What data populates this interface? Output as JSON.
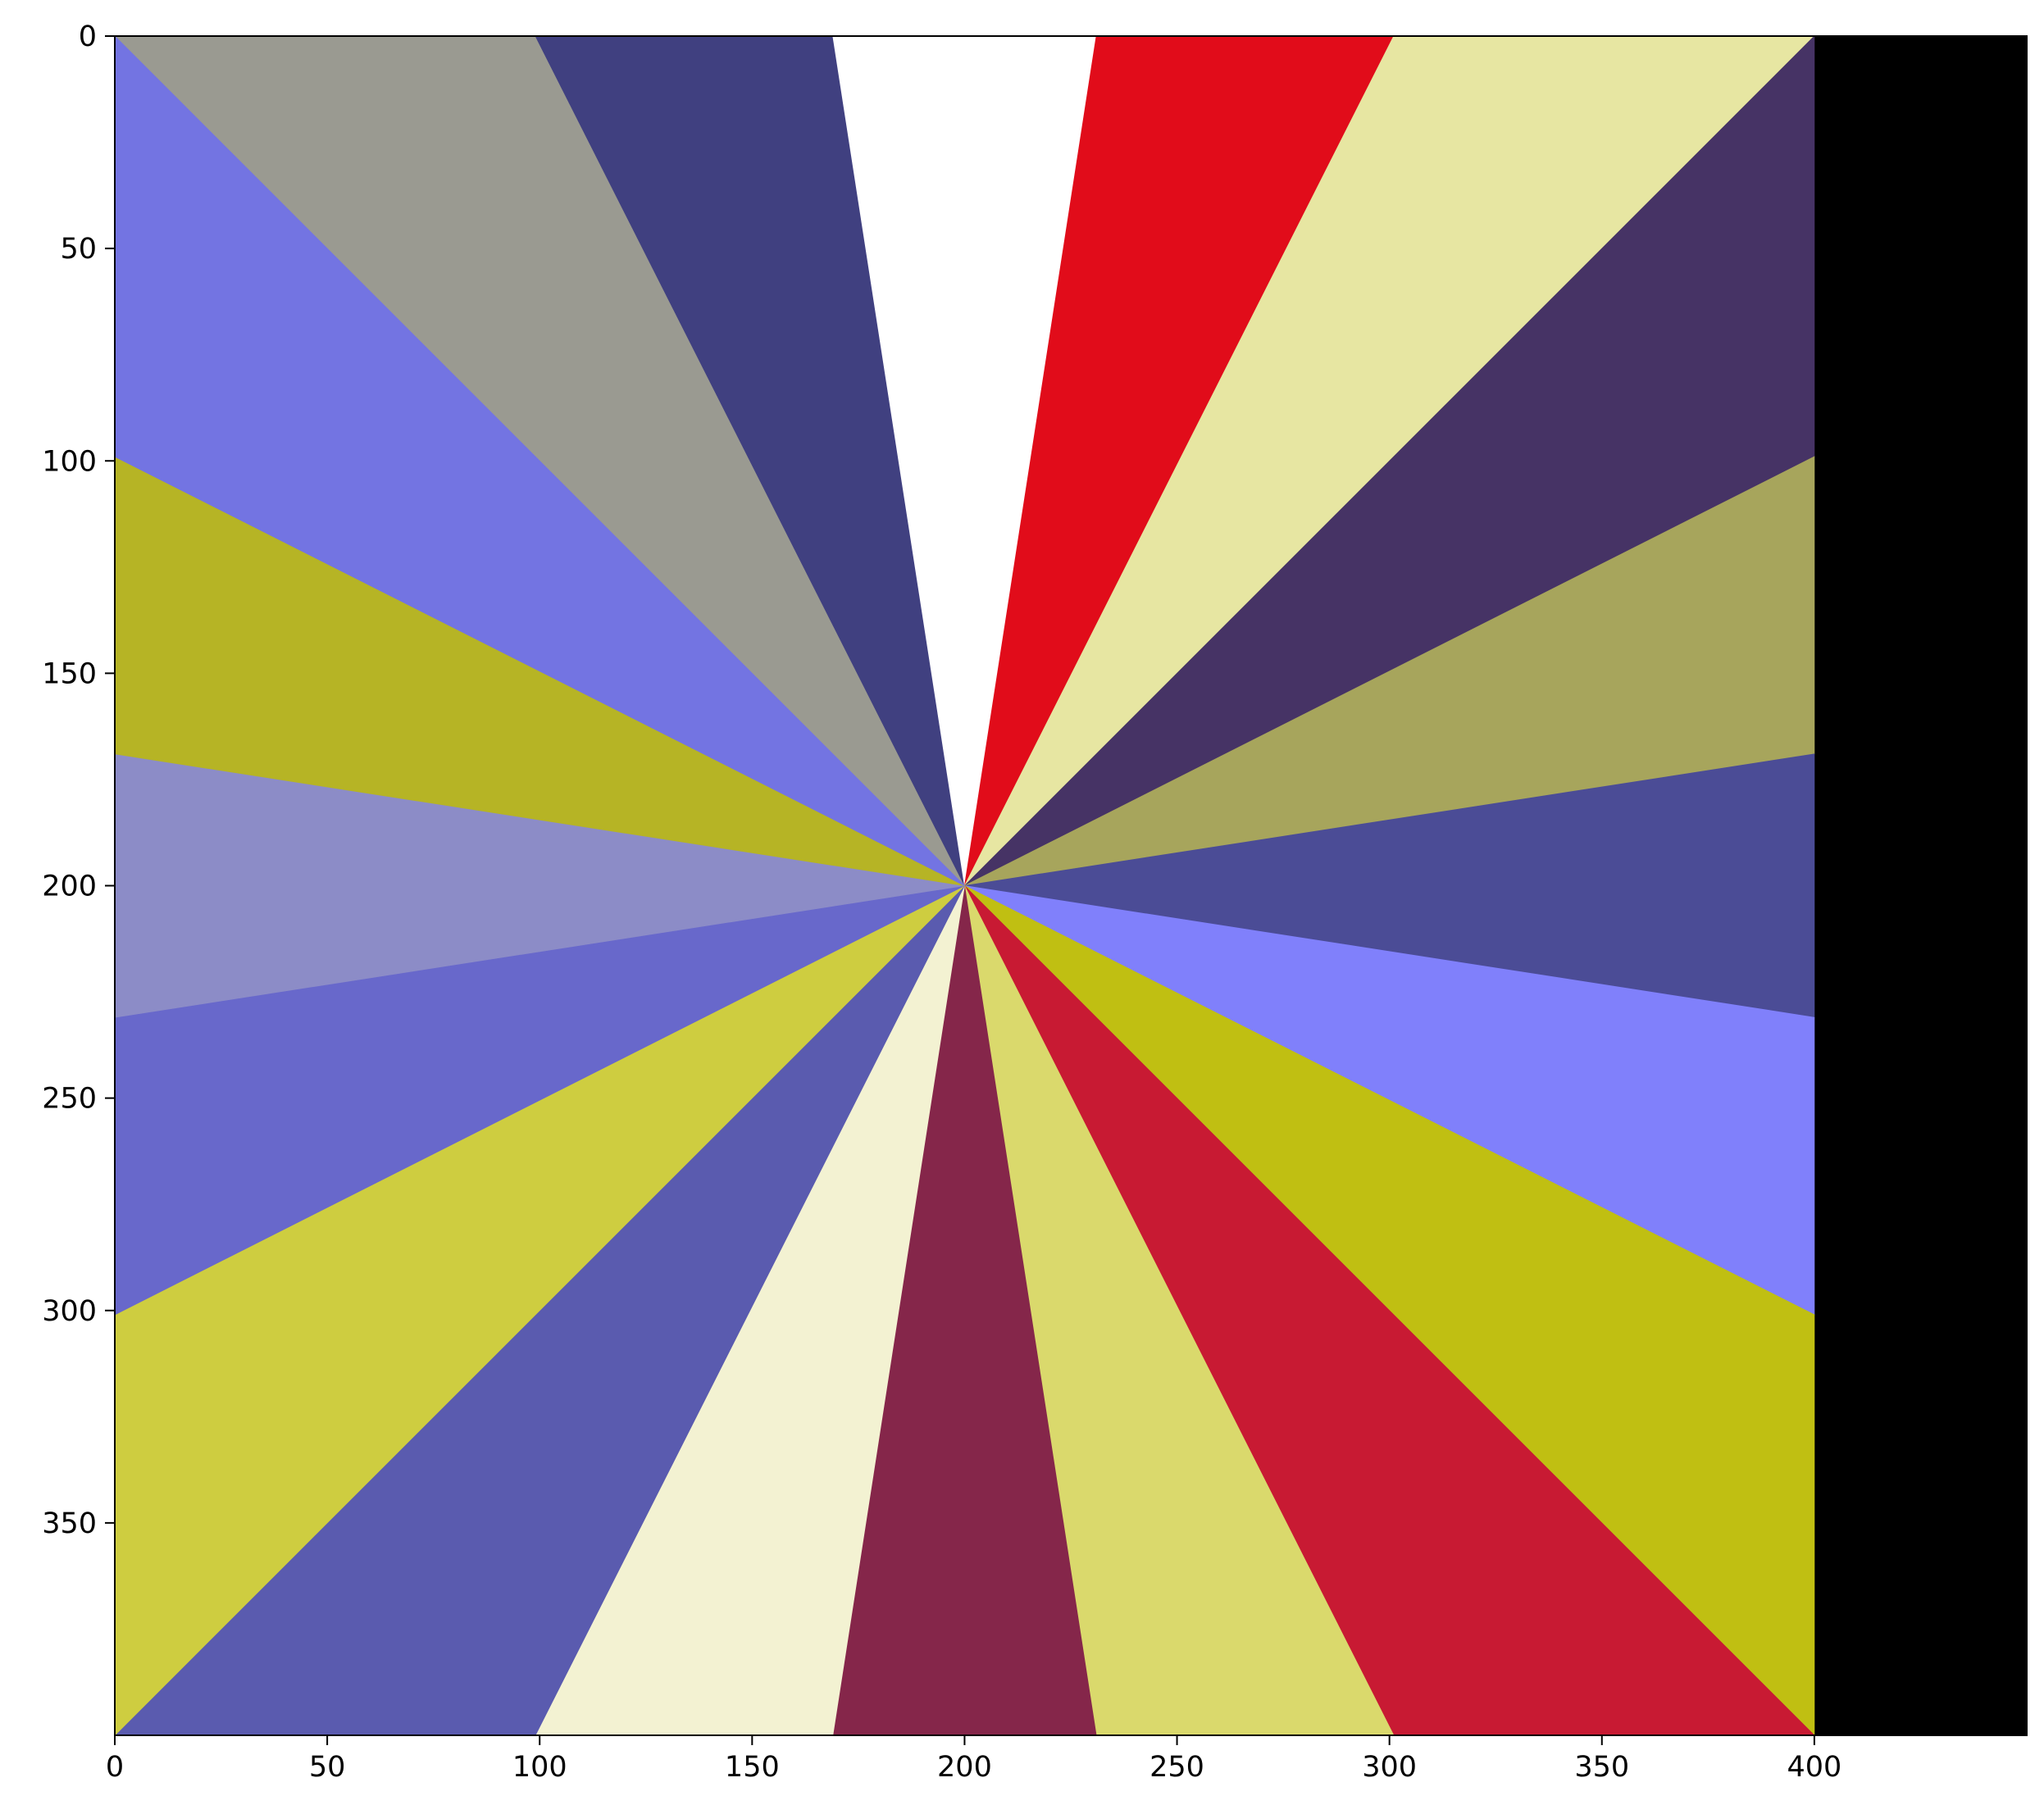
{
  "chart_data": {
    "type": "heatmap",
    "title": "",
    "xlabel": "",
    "ylabel": "",
    "xlim": [
      0,
      450
    ],
    "ylim": [
      400,
      0
    ],
    "x_ticks": [
      0,
      50,
      100,
      150,
      200,
      250,
      300,
      350,
      400
    ],
    "y_ticks": [
      0,
      50,
      100,
      150,
      200,
      250,
      300,
      350
    ],
    "image_extent": {
      "x": [
        0,
        400
      ],
      "y": [
        0,
        400
      ]
    },
    "center": [
      200,
      200
    ],
    "background_color": "#000000",
    "sectors": [
      {
        "from": [
          0,
          0
        ],
        "to": [
          99,
          0
        ],
        "color": "#9a9a91"
      },
      {
        "from": [
          99,
          0
        ],
        "to": [
          169,
          0
        ],
        "color": "#404080"
      },
      {
        "from": [
          169,
          0
        ],
        "to": [
          231,
          0
        ],
        "color": "#ffffff"
      },
      {
        "from": [
          231,
          0
        ],
        "to": [
          301,
          0
        ],
        "color": "#e10c1a"
      },
      {
        "from": [
          301,
          0
        ],
        "to": [
          400,
          0
        ],
        "color": "#e7e6a2"
      },
      {
        "from": [
          400,
          0
        ],
        "to": [
          400,
          99
        ],
        "color": "#463365"
      },
      {
        "from": [
          400,
          99
        ],
        "to": [
          400,
          169
        ],
        "color": "#a7a55c"
      },
      {
        "from": [
          400,
          169
        ],
        "to": [
          400,
          231
        ],
        "color": "#4b4c96"
      },
      {
        "from": [
          400,
          231
        ],
        "to": [
          400,
          301
        ],
        "color": "#8080fb"
      },
      {
        "from": [
          400,
          301
        ],
        "to": [
          400,
          400
        ],
        "color": "#c0bf12"
      },
      {
        "from": [
          400,
          400
        ],
        "to": [
          301,
          400
        ],
        "color": "#c81a33"
      },
      {
        "from": [
          301,
          400
        ],
        "to": [
          231,
          400
        ],
        "color": "#dad96c"
      },
      {
        "from": [
          231,
          400
        ],
        "to": [
          169,
          400
        ],
        "color": "#85264a"
      },
      {
        "from": [
          169,
          400
        ],
        "to": [
          99,
          400
        ],
        "color": "#f3f2d2"
      },
      {
        "from": [
          99,
          400
        ],
        "to": [
          0,
          400
        ],
        "color": "#5a5baf"
      },
      {
        "from": [
          0,
          400
        ],
        "to": [
          0,
          301
        ],
        "color": "#cecd40"
      },
      {
        "from": [
          0,
          301
        ],
        "to": [
          0,
          231
        ],
        "color": "#6868cb"
      },
      {
        "from": [
          0,
          231
        ],
        "to": [
          0,
          169
        ],
        "color": "#8c8cc7"
      },
      {
        "from": [
          0,
          169
        ],
        "to": [
          0,
          99
        ],
        "color": "#b6b425"
      },
      {
        "from": [
          0,
          99
        ],
        "to": [
          0,
          0
        ],
        "color": "#7374e2"
      }
    ]
  }
}
